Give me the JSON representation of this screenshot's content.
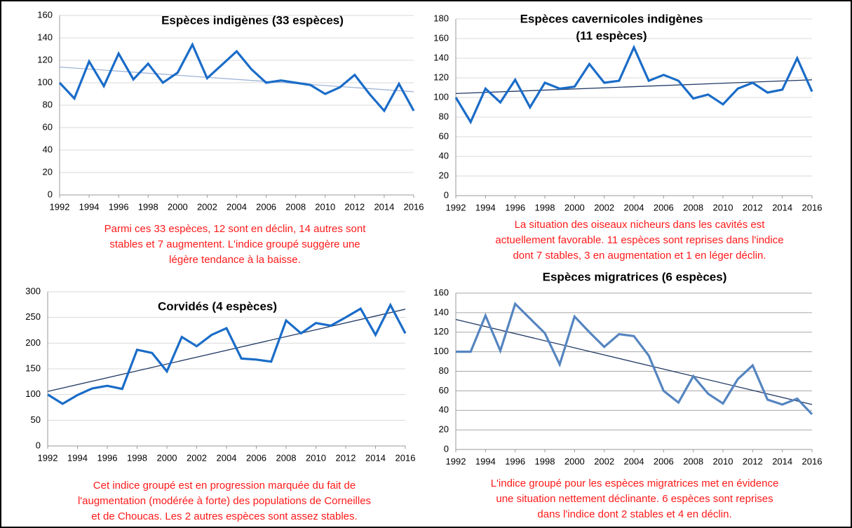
{
  "chart_data": [
    {
      "type": "line",
      "title": [
        "Espèces indigènes  (33 espèces)"
      ],
      "x": [
        1992,
        1993,
        1994,
        1995,
        1996,
        1997,
        1998,
        1999,
        2000,
        2001,
        2002,
        2003,
        2004,
        2005,
        2006,
        2007,
        2008,
        2009,
        2010,
        2011,
        2012,
        2013,
        2014,
        2015,
        2016
      ],
      "values": [
        100,
        86,
        119,
        97,
        126,
        103,
        117,
        100,
        109,
        134,
        104,
        116,
        128,
        112,
        100,
        102,
        100,
        98,
        90,
        96,
        107,
        90,
        75,
        99,
        75
      ],
      "color": "#1a6cc8",
      "trend": {
        "values": [
          114,
          92
        ],
        "color": "#9fb3d6"
      },
      "xlim": [
        1992,
        2016
      ],
      "xticks": [
        1992,
        1994,
        1996,
        1998,
        2000,
        2002,
        2004,
        2006,
        2008,
        2010,
        2012,
        2014,
        2016
      ],
      "ylim": [
        0,
        160
      ],
      "yticks": [
        0,
        20,
        40,
        60,
        80,
        100,
        120,
        140,
        160
      ],
      "grid": true,
      "grid_color": "#d9d9d9",
      "note": [
        "Parmi ces 33 espèces, 12 sont en déclin, 14 autres sont",
        "stables et 7 augmentent. L'indice groupé suggère une",
        "légère tendance à la baisse."
      ]
    },
    {
      "type": "line",
      "title": [
        "Espèces cavernicoles indigènes",
        "(11 espèces)"
      ],
      "x": [
        1992,
        1993,
        1994,
        1995,
        1996,
        1997,
        1998,
        1999,
        2000,
        2001,
        2002,
        2003,
        2004,
        2005,
        2006,
        2007,
        2008,
        2009,
        2010,
        2011,
        2012,
        2013,
        2014,
        2015,
        2016
      ],
      "values": [
        100,
        75,
        109,
        95,
        118,
        90,
        115,
        109,
        111,
        134,
        115,
        117,
        151,
        117,
        123,
        117,
        99,
        103,
        93,
        109,
        115,
        105,
        108,
        140,
        106
      ],
      "color": "#1a6cc8",
      "trend": {
        "values": [
          104,
          118
        ],
        "color": "#1f3864"
      },
      "xlim": [
        1992,
        2016
      ],
      "xticks": [
        1992,
        1994,
        1996,
        1998,
        2000,
        2002,
        2004,
        2006,
        2008,
        2010,
        2012,
        2014,
        2016
      ],
      "ylim": [
        0,
        180
      ],
      "yticks": [
        0,
        20,
        40,
        60,
        80,
        100,
        120,
        140,
        160,
        180
      ],
      "grid": true,
      "grid_color": "#d9d9d9",
      "note": [
        "La situation des oiseaux nicheurs dans les cavités est",
        "actuellement favorable. 11 espèces sont reprises dans l'indice",
        "dont 7 stables, 3 en augmentation et 1 en léger déclin."
      ]
    },
    {
      "type": "line",
      "title": [
        "Corvidés  (4 espèces)"
      ],
      "x": [
        1992,
        1993,
        1994,
        1995,
        1996,
        1997,
        1998,
        1999,
        2000,
        2001,
        2002,
        2003,
        2004,
        2005,
        2006,
        2007,
        2008,
        2009,
        2010,
        2011,
        2012,
        2013,
        2014,
        2015,
        2016
      ],
      "values": [
        100,
        82,
        99,
        112,
        117,
        111,
        187,
        181,
        145,
        212,
        194,
        216,
        229,
        170,
        168,
        164,
        244,
        219,
        239,
        234,
        250,
        267,
        216,
        274,
        219
      ],
      "color": "#1a6cc8",
      "trend": {
        "values": [
          106,
          266
        ],
        "color": "#1f3864"
      },
      "xlim": [
        1992,
        2016
      ],
      "xticks": [
        1992,
        1994,
        1996,
        1998,
        2000,
        2002,
        2004,
        2006,
        2008,
        2010,
        2012,
        2014,
        2016
      ],
      "ylim": [
        0,
        300
      ],
      "yticks": [
        0,
        50,
        100,
        150,
        200,
        250,
        300
      ],
      "grid": true,
      "grid_color": "#d9d9d9",
      "note": [
        "Cet indice groupé est en progression marquée du fait de",
        "l'augmentation (modérée à forte) des populations de Corneilles",
        "et de Choucas. Les 2 autres espèces sont assez stables."
      ]
    },
    {
      "type": "line",
      "title": [
        "Espèces migratrices (6 espèces)"
      ],
      "x": [
        1992,
        1993,
        1994,
        1995,
        1996,
        1997,
        1998,
        1999,
        2000,
        2001,
        2002,
        2003,
        2004,
        2005,
        2006,
        2007,
        2008,
        2009,
        2010,
        2011,
        2012,
        2013,
        2014,
        2015,
        2016
      ],
      "values": [
        100,
        100,
        137,
        101,
        149,
        134,
        119,
        87,
        136,
        120,
        105,
        118,
        116,
        96,
        60,
        48,
        75,
        57,
        47,
        72,
        86,
        51,
        46,
        52,
        36
      ],
      "color": "#5585c0",
      "trend": {
        "values": [
          133,
          46
        ],
        "color": "#1f3864"
      },
      "xlim": [
        1992,
        2016
      ],
      "xticks": [
        1992,
        1994,
        1996,
        1998,
        2000,
        2002,
        2004,
        2006,
        2008,
        2010,
        2012,
        2014,
        2016
      ],
      "ylim": [
        0,
        160
      ],
      "yticks": [
        0,
        20,
        40,
        60,
        80,
        100,
        120,
        140,
        160
      ],
      "grid": true,
      "grid_color": "#a6a6a6",
      "note": [
        "L'indice groupé pour les espèces migratrices met en évidence",
        "une situation nettement déclinante. 6 espèces sont reprises",
        "dans l'indice dont  2 stables et 4 en  déclin."
      ]
    }
  ]
}
